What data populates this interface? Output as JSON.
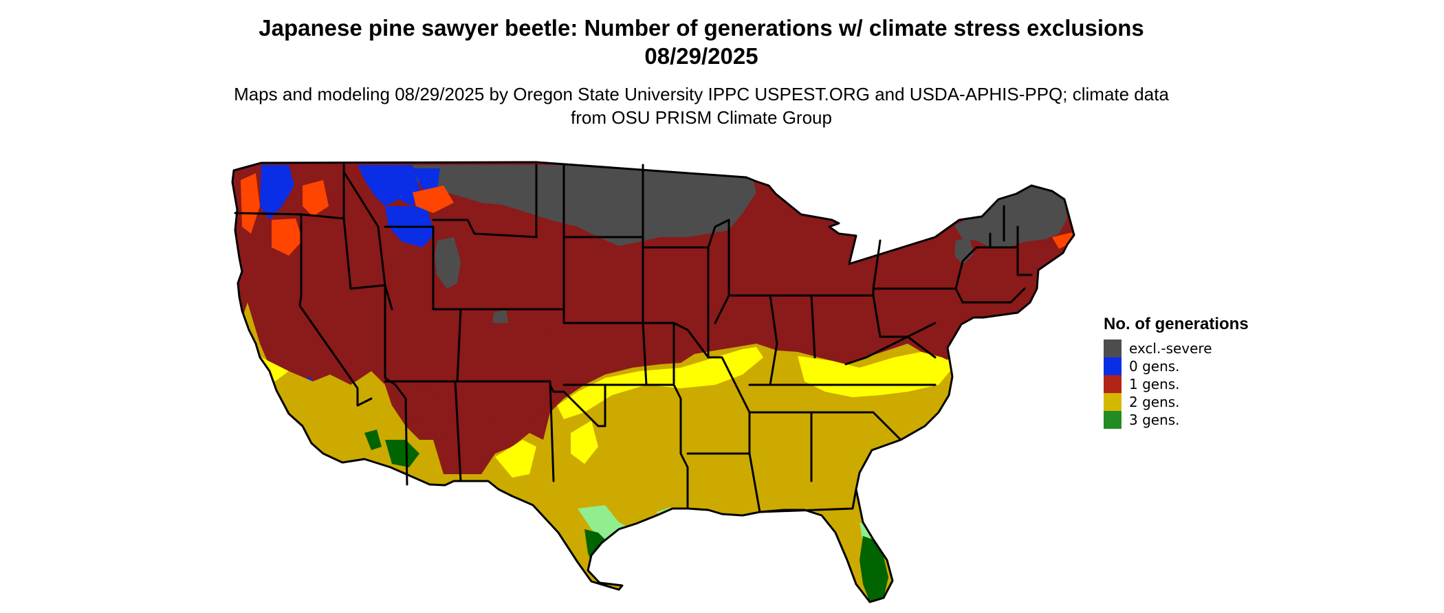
{
  "title": "Japanese pine sawyer beetle: Number of generations w/ climate stress exclusions 08/29/2025",
  "subtitle": "Maps and modeling 08/29/2025 by Oregon State University IPPC USPEST.ORG and USDA-APHIS-PPQ; climate data from OSU PRISM Climate Group",
  "legend": {
    "title": "No. of generations",
    "items": [
      {
        "label": "excl.-severe",
        "color": "#4d4d4d"
      },
      {
        "label": "0 gens.",
        "color": "#0a2ee6"
      },
      {
        "label": "1 gens.",
        "color": "#b22418"
      },
      {
        "label": "2 gens.",
        "color": "#d4b800"
      },
      {
        "label": "3 gens.",
        "color": "#238b23"
      }
    ]
  },
  "map_colors": {
    "excluded": "#4d4d4d",
    "zero": "#0a2ee6",
    "one": "#8b1a1a",
    "one_light": "#ff4500",
    "two": "#ccaa00",
    "two_light": "#ffff00",
    "three": "#006400",
    "three_light": "#90ee90",
    "border": "#000000"
  }
}
